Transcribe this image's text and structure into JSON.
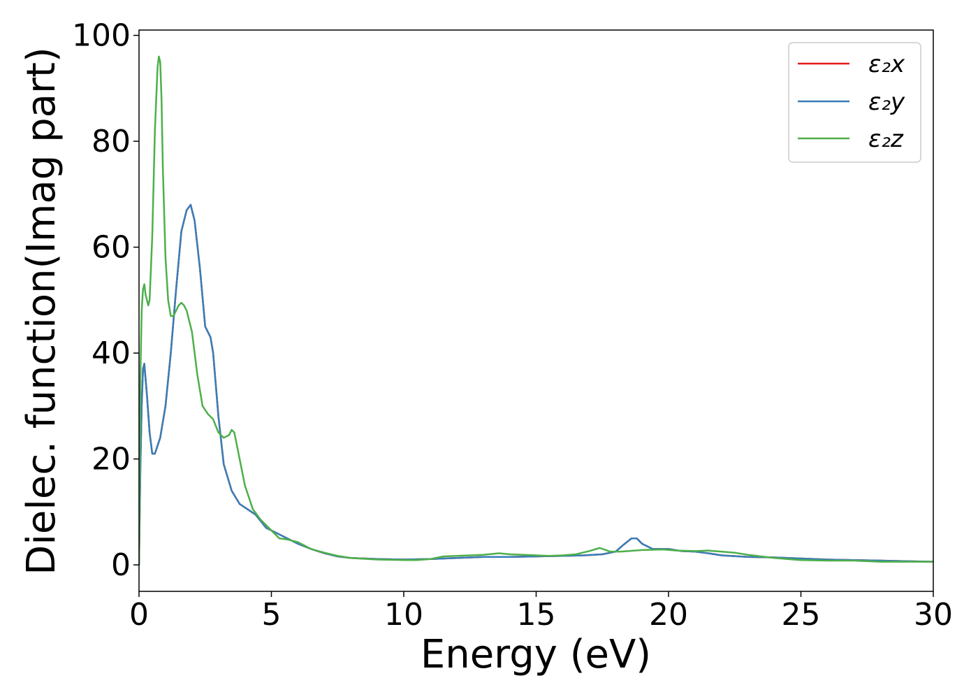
{
  "chart_data": {
    "type": "line",
    "xlabel": "Energy (eV)",
    "ylabel": "Dielec. function(Imag part)",
    "xlim": [
      0,
      30
    ],
    "ylim": [
      -5,
      101
    ],
    "x_ticks": [
      0,
      5,
      10,
      15,
      20,
      25,
      30
    ],
    "y_ticks": [
      0,
      20,
      40,
      60,
      80,
      100
    ],
    "grid": false,
    "legend_position": "top-right",
    "series": [
      {
        "name": "ε₂x",
        "color": "#e41a1c",
        "x": [
          0,
          0.05,
          0.1,
          0.15,
          0.2,
          0.3,
          0.4,
          0.5,
          0.6,
          0.8,
          1.0,
          1.2,
          1.4,
          1.6,
          1.8,
          1.95,
          2.1,
          2.3,
          2.5,
          2.7,
          2.8,
          3.0,
          3.2,
          3.5,
          3.8,
          4.1,
          4.4,
          4.8,
          5.2,
          5.6,
          6.0,
          6.5,
          7.0,
          7.5,
          8.0,
          9.0,
          10.0,
          11.0,
          12.0,
          13.0,
          14.0,
          15.0,
          16.0,
          16.8,
          17.5,
          18.0,
          18.3,
          18.6,
          18.8,
          19.0,
          19.4,
          20.0,
          20.5,
          21.0,
          21.5,
          22.0,
          23.0,
          24.0,
          25.0,
          26.0,
          27.0,
          28.0,
          29.0,
          30.0
        ],
        "values": [
          0,
          18,
          30,
          37,
          38,
          32,
          25,
          21,
          21,
          24,
          30,
          40,
          52,
          63,
          67,
          68,
          65,
          56,
          45,
          43,
          40,
          28,
          19,
          14,
          11.5,
          10.5,
          9.5,
          7,
          6,
          5,
          4,
          3,
          2.2,
          1.6,
          1.3,
          1.1,
          1.0,
          1.1,
          1.3,
          1.5,
          1.5,
          1.6,
          1.7,
          1.8,
          2.0,
          2.5,
          3.8,
          5.0,
          5.0,
          4.0,
          3.0,
          3.0,
          2.6,
          2.5,
          2.2,
          1.8,
          1.5,
          1.4,
          1.2,
          1.0,
          0.9,
          0.8,
          0.7,
          0.6
        ]
      },
      {
        "name": "ε₂y",
        "color": "#377eb8",
        "x": [
          0,
          0.05,
          0.1,
          0.15,
          0.2,
          0.3,
          0.4,
          0.5,
          0.6,
          0.8,
          1.0,
          1.2,
          1.4,
          1.6,
          1.8,
          1.95,
          2.1,
          2.3,
          2.5,
          2.7,
          2.8,
          3.0,
          3.2,
          3.5,
          3.8,
          4.1,
          4.4,
          4.8,
          5.2,
          5.6,
          6.0,
          6.5,
          7.0,
          7.5,
          8.0,
          9.0,
          10.0,
          11.0,
          12.0,
          13.0,
          14.0,
          15.0,
          16.0,
          16.8,
          17.5,
          18.0,
          18.3,
          18.6,
          18.8,
          19.0,
          19.4,
          20.0,
          20.5,
          21.0,
          21.5,
          22.0,
          23.0,
          24.0,
          25.0,
          26.0,
          27.0,
          28.0,
          29.0,
          30.0
        ],
        "values": [
          0,
          18,
          30,
          37,
          38,
          32,
          25,
          21,
          21,
          24,
          30,
          40,
          52,
          63,
          67,
          68,
          65,
          56,
          45,
          43,
          40,
          28,
          19,
          14,
          11.5,
          10.5,
          9.5,
          7,
          6,
          5,
          4,
          3,
          2.2,
          1.6,
          1.3,
          1.1,
          1.0,
          1.1,
          1.3,
          1.5,
          1.5,
          1.6,
          1.7,
          1.8,
          2.0,
          2.5,
          3.8,
          5.0,
          5.0,
          4.0,
          3.0,
          3.0,
          2.6,
          2.5,
          2.2,
          1.8,
          1.5,
          1.4,
          1.2,
          1.0,
          0.9,
          0.8,
          0.7,
          0.6
        ]
      },
      {
        "name": "ε₂z",
        "color": "#4daf4a",
        "x": [
          0,
          0.05,
          0.1,
          0.15,
          0.2,
          0.25,
          0.3,
          0.35,
          0.4,
          0.5,
          0.6,
          0.7,
          0.75,
          0.8,
          0.85,
          0.9,
          1.0,
          1.1,
          1.2,
          1.3,
          1.4,
          1.5,
          1.6,
          1.7,
          1.8,
          2.0,
          2.2,
          2.4,
          2.6,
          2.8,
          3.0,
          3.2,
          3.4,
          3.5,
          3.6,
          3.8,
          4.0,
          4.3,
          4.6,
          5.0,
          5.3,
          5.6,
          6.0,
          6.5,
          7.0,
          7.5,
          8.0,
          9.0,
          10.0,
          10.5,
          11.0,
          11.5,
          12.0,
          13.0,
          13.6,
          14.0,
          15.0,
          15.5,
          16.0,
          16.5,
          17.0,
          17.4,
          17.8,
          18.2,
          19.0,
          19.8,
          20.3,
          21.0,
          21.5,
          22.0,
          22.5,
          23.0,
          24.0,
          25.0,
          26.0,
          27.0,
          28.0,
          29.0,
          30.0
        ],
        "values": [
          0,
          35,
          48,
          52,
          53,
          51,
          50,
          49,
          50,
          62,
          82,
          94,
          96,
          95,
          88,
          75,
          58,
          50,
          47,
          47,
          48,
          49,
          49.5,
          49,
          48,
          44,
          36,
          30,
          28.5,
          27.5,
          25,
          24,
          24.5,
          25.5,
          25,
          20,
          15,
          10.5,
          8.5,
          6.5,
          5,
          4.8,
          4.3,
          3,
          2.3,
          1.7,
          1.3,
          1.0,
          0.9,
          0.9,
          1.1,
          1.6,
          1.7,
          1.9,
          2.2,
          2.0,
          1.8,
          1.7,
          1.8,
          2.0,
          2.6,
          3.2,
          2.5,
          2.5,
          2.8,
          2.9,
          2.7,
          2.6,
          2.7,
          2.5,
          2.3,
          1.9,
          1.3,
          0.9,
          0.8,
          0.8,
          0.6,
          0.6,
          0.6
        ]
      }
    ]
  }
}
